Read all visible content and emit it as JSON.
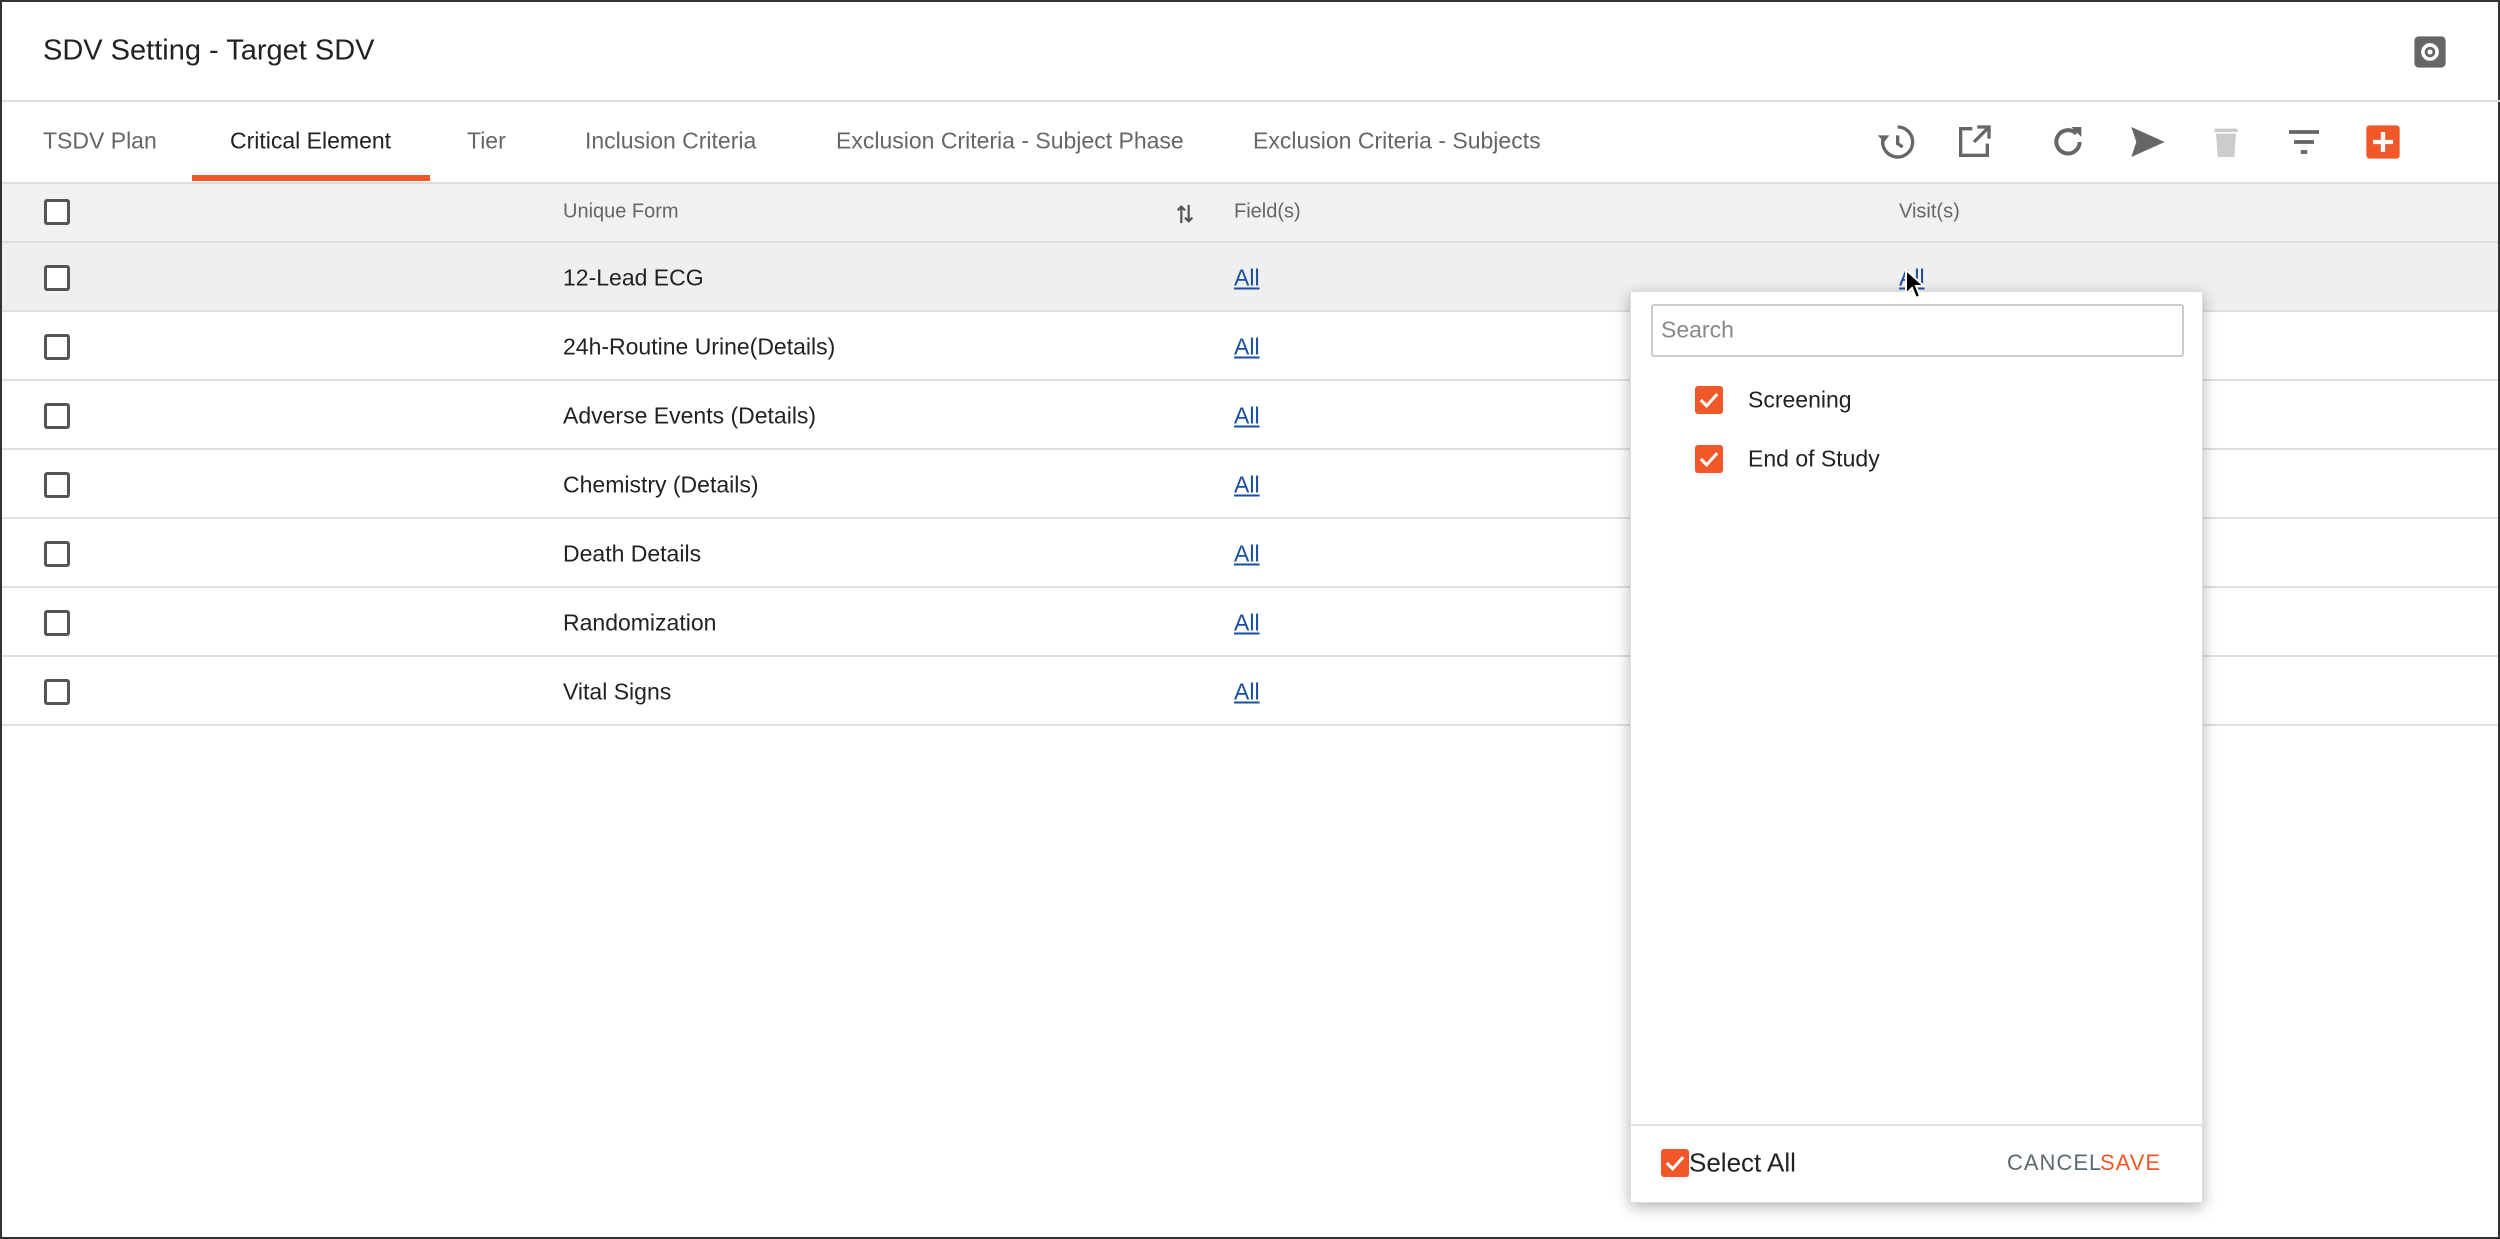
{
  "header": {
    "title": "SDV Setting - Target SDV"
  },
  "tabs": [
    "TSDV Plan",
    "Critical Element",
    "Tier",
    "Inclusion Criteria",
    "Exclusion Criteria - Subject Phase",
    "Exclusion Criteria - Subjects"
  ],
  "active_tab": 1,
  "table": {
    "columns": [
      "Unique Form",
      "Field(s)",
      "Visit(s)"
    ],
    "rows": [
      {
        "form": "12-Lead ECG",
        "fields": "All",
        "visits": "All"
      },
      {
        "form": "24h-Routine Urine(Details)",
        "fields": "All"
      },
      {
        "form": "Adverse Events (Details)",
        "fields": "All"
      },
      {
        "form": "Chemistry (Details)",
        "fields": "All"
      },
      {
        "form": "Death Details",
        "fields": "All"
      },
      {
        "form": "Randomization",
        "fields": "All"
      },
      {
        "form": "Vital Signs",
        "fields": "All"
      }
    ]
  },
  "popup": {
    "search_placeholder": "Search",
    "options": [
      "Screening",
      "End of Study"
    ],
    "select_all": "Select All",
    "cancel": "CANCEL",
    "save": "SAVE"
  }
}
